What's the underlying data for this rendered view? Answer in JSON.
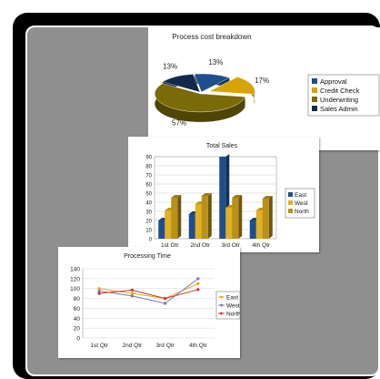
{
  "colors": {
    "frame": "#000000",
    "panel": "#8f8f8f",
    "navy": "#1f4e8c",
    "gold": "#d9a300",
    "olive": "#7a6a08",
    "dark": "#13284a",
    "line_east": "#f0a020",
    "line_west": "#7a7aa8",
    "line_north": "#c0392b"
  },
  "chart_data": [
    {
      "type": "pie",
      "title": "Process cost breakdown",
      "slices": [
        {
          "label": "Approval",
          "value": 13,
          "display": "13%",
          "color": "#1f4e8c"
        },
        {
          "label": "Credit Check",
          "value": 17,
          "display": "17%",
          "color": "#d9a300"
        },
        {
          "label": "Underwriting",
          "value": 57,
          "display": "57%",
          "color": "#7a6a08"
        },
        {
          "label": "Sales Admin",
          "value": 13,
          "display": "13%",
          "color": "#13284a"
        }
      ],
      "legend_position": "right"
    },
    {
      "type": "bar",
      "title": "Total Sales",
      "categories": [
        "1st Qtr",
        "2nd Qtr",
        "3rd Qtr",
        "4th Qtr"
      ],
      "series": [
        {
          "name": "East",
          "values": [
            20,
            27,
            90,
            20
          ],
          "color": "#1f4e8c"
        },
        {
          "name": "West",
          "values": [
            31,
            38,
            34,
            31
          ],
          "color": "#e0b020"
        },
        {
          "name": "North",
          "values": [
            45,
            47,
            45,
            44
          ],
          "color": "#b8901a"
        }
      ],
      "ylim": [
        0,
        90
      ],
      "yticks": [
        0,
        10,
        20,
        30,
        40,
        50,
        60,
        70,
        80,
        90
      ],
      "legend_position": "right",
      "grid": true
    },
    {
      "type": "line",
      "title": "Processing Time",
      "categories": [
        "1st Qtr",
        "2nd Qtr",
        "3rd Qtr",
        "4th Qtr"
      ],
      "series": [
        {
          "name": "East",
          "values": [
            100,
            90,
            80,
            110
          ],
          "color": "#f0a020"
        },
        {
          "name": "West",
          "values": [
            95,
            85,
            70,
            120
          ],
          "color": "#7a7aa8"
        },
        {
          "name": "North",
          "values": [
            90,
            97,
            80,
            98
          ],
          "color": "#c0392b"
        }
      ],
      "ylim": [
        0,
        140
      ],
      "yticks": [
        0,
        20,
        40,
        60,
        80,
        100,
        120,
        140
      ],
      "legend_position": "right",
      "grid": true
    }
  ]
}
